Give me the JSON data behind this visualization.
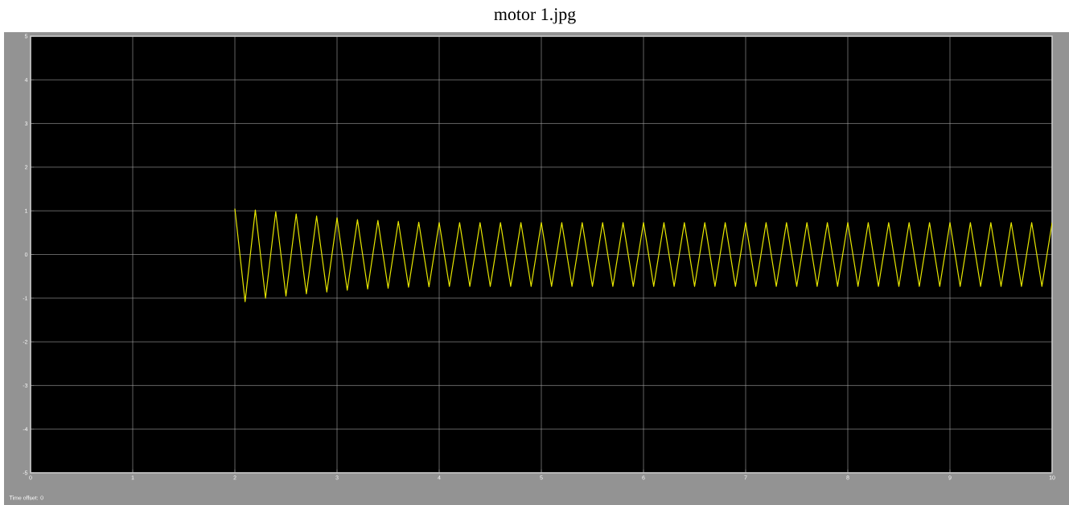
{
  "chart_data": {
    "type": "line",
    "title": "motor 1.jpg",
    "annotations": [
      "Time offset:  0"
    ],
    "xlim": [
      0,
      10
    ],
    "ylim": [
      -5,
      5
    ],
    "xticks": [
      0,
      1,
      2,
      3,
      4,
      5,
      6,
      7,
      8,
      9,
      10
    ],
    "yticks": [
      -5,
      -4,
      -3,
      -2,
      -1,
      0,
      1,
      2,
      3,
      4,
      5
    ],
    "grid": true,
    "color": "#e6e600",
    "x": [
      2.0,
      2.1,
      2.2,
      2.3,
      2.4,
      2.5,
      2.6,
      2.7,
      2.8,
      2.9,
      3.0,
      3.1,
      3.2,
      3.3,
      3.4,
      3.5,
      3.6,
      3.7,
      3.8,
      3.9,
      4.0,
      4.1,
      4.2,
      4.3,
      4.4,
      4.5,
      4.6,
      4.7,
      4.8,
      4.9,
      5.0,
      5.1,
      5.2,
      5.3,
      5.4,
      5.5,
      5.6,
      5.7,
      5.8,
      5.9,
      6.0,
      6.1,
      6.2,
      6.3,
      6.4,
      6.5,
      6.6,
      6.7,
      6.8,
      6.9,
      7.0,
      7.1,
      7.2,
      7.3,
      7.4,
      7.5,
      7.6,
      7.7,
      7.8,
      7.9,
      8.0,
      8.1,
      8.2,
      8.3,
      8.4,
      8.5,
      8.6,
      8.7,
      8.8,
      8.9,
      9.0,
      9.1,
      9.2,
      9.3,
      9.4,
      9.5,
      9.6,
      9.7,
      9.8,
      9.9,
      10.0
    ],
    "values": [
      1.05,
      -1.08,
      1.02,
      -1.0,
      0.98,
      -0.95,
      0.93,
      -0.9,
      0.88,
      -0.86,
      0.84,
      -0.82,
      0.8,
      -0.79,
      0.78,
      -0.77,
      0.76,
      -0.75,
      0.74,
      -0.74,
      0.73,
      -0.73,
      0.73,
      -0.73,
      0.73,
      -0.73,
      0.73,
      -0.73,
      0.73,
      -0.73,
      0.73,
      -0.73,
      0.73,
      -0.73,
      0.73,
      -0.73,
      0.73,
      -0.73,
      0.73,
      -0.73,
      0.73,
      -0.73,
      0.73,
      -0.73,
      0.73,
      -0.73,
      0.73,
      -0.73,
      0.73,
      -0.73,
      0.73,
      -0.73,
      0.73,
      -0.73,
      0.73,
      -0.73,
      0.73,
      -0.73,
      0.73,
      -0.73,
      0.73,
      -0.73,
      0.73,
      -0.73,
      0.73,
      -0.73,
      0.73,
      -0.73,
      0.73,
      -0.73,
      0.73,
      -0.73,
      0.73,
      -0.73,
      0.73,
      -0.73,
      0.73,
      -0.73,
      0.73,
      -0.73,
      0.73
    ]
  }
}
